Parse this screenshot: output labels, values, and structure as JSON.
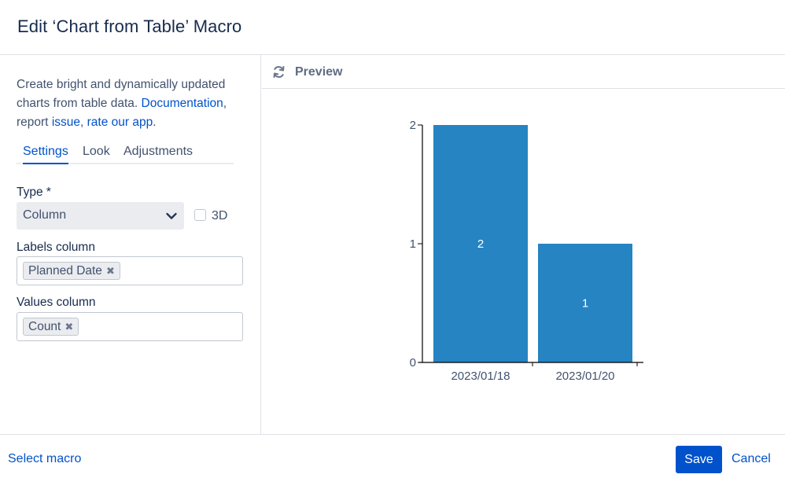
{
  "dialog": {
    "title": "Edit ‘Chart from Table’ Macro"
  },
  "description": {
    "line1": "Create bright and dynamically updated charts from table data.",
    "documentation_link": "Documentation",
    "comma1": ",",
    "report_prefix": "report",
    "issue_link": "issue",
    "comma2": ",",
    "rate_link": "rate our app",
    "period": "."
  },
  "tabs": [
    {
      "label": "Settings",
      "active": true
    },
    {
      "label": "Look",
      "active": false
    },
    {
      "label": "Adjustments",
      "active": false
    }
  ],
  "type_field": {
    "label": "Type *",
    "value": "Column",
    "checkbox_label": "3D",
    "checked": false
  },
  "labels_column": {
    "label": "Labels column",
    "tags": [
      "Planned Date"
    ]
  },
  "values_column": {
    "label": "Values column",
    "tags": [
      "Count"
    ]
  },
  "preview": {
    "label": "Preview"
  },
  "footer": {
    "select_macro": "Select macro",
    "save": "Save",
    "cancel": "Cancel"
  },
  "colors": {
    "accent": "#0052cc",
    "bar": "#2684c3"
  },
  "icons": {
    "refresh": "refresh-icon",
    "chevron": "chevron-down-icon",
    "tag_remove": "close-icon"
  },
  "chart_data": {
    "type": "bar",
    "categories": [
      "2023/01/18",
      "2023/01/20"
    ],
    "values": [
      2,
      1
    ],
    "data_labels": [
      "2",
      "1"
    ],
    "yticks": [
      "0",
      "1",
      "2"
    ],
    "ylim": [
      0,
      2
    ],
    "grid": false,
    "title": "",
    "xlabel": "",
    "ylabel": ""
  }
}
